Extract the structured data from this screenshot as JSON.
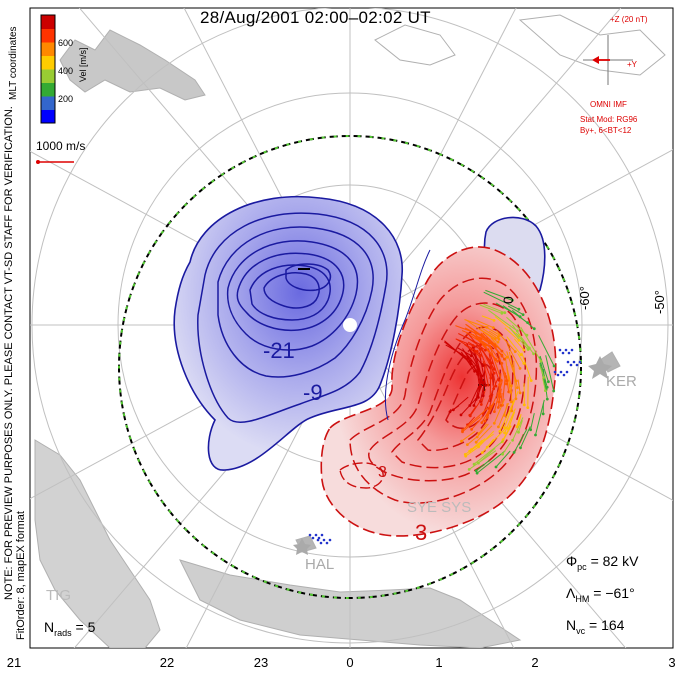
{
  "title": "28/Aug/2001 02:00–02:02 UT",
  "side_notes": {
    "preview": "NOTE: FOR PREVIEW PURPOSES ONLY. PLEASE CONTACT VT-SD STAFF FOR VERIFICATION.",
    "fit": "FitOrder: 8, mapEX format",
    "coords": "MLT coordinates"
  },
  "colorbar": {
    "label": "Vel [m/s]",
    "ticks": [
      "600",
      "400",
      "200"
    ],
    "colors": [
      "#0000ff",
      "#3366cc",
      "#33aa33",
      "#99cc33",
      "#ffcc00",
      "#ff8800",
      "#ff3300",
      "#cc0000"
    ]
  },
  "reference_vector": {
    "label": "1000 m/s",
    "color": "#dd0000"
  },
  "imf": {
    "z_label": "+Z (20 nT)",
    "y_label": "+Y",
    "source": "OMNI IMF",
    "model": "Stat Mod: RG96",
    "bin": "By+, 6<BT<12",
    "color": "#dd0000"
  },
  "latitude_labels": [
    "-60°",
    "-50°"
  ],
  "station_labels": [
    "KER",
    "SYE SYS",
    "HAL",
    "TIG"
  ],
  "contour_labels": {
    "negative": [
      "-21",
      "-9"
    ],
    "positive": [
      "3",
      "3"
    ],
    "zero_line": "0"
  },
  "mlt_axis": {
    "ticks": [
      "21",
      "22",
      "23",
      "0",
      "1",
      "2",
      "3"
    ]
  },
  "stats": {
    "nrads_label": "N",
    "nrads_sub": "rads",
    "nrads_value": "= 5",
    "phi_label": "Φ",
    "phi_sub": "pc",
    "phi_value": "= 82 kV",
    "lambda_label": "Λ",
    "lambda_sub": "HM",
    "lambda_value": "= −61°",
    "nvc_label": "N",
    "nvc_sub": "vc",
    "nvc_value": "= 164"
  },
  "colors": {
    "negative_cell": "#1a1aa0",
    "positive_cell": "#cc1111",
    "hmb": "#33aa33",
    "land": "#aaaaaa"
  }
}
